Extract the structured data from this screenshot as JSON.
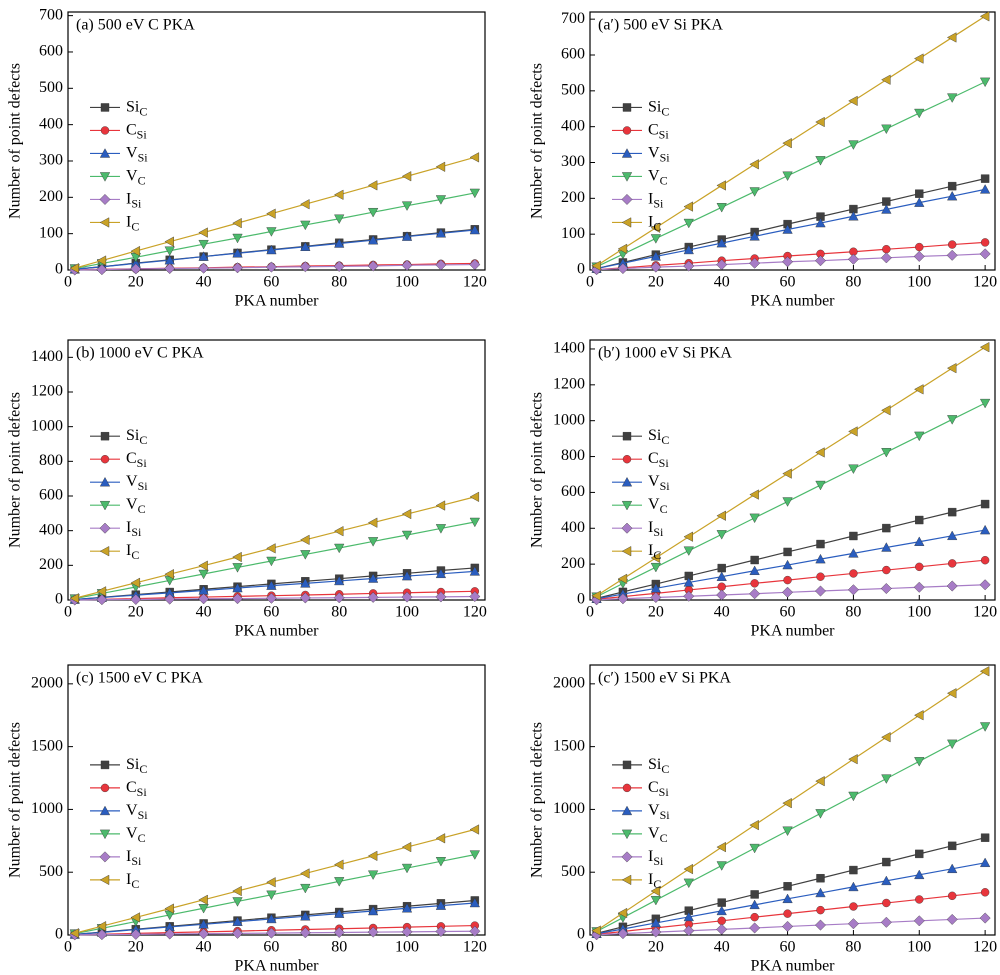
{
  "chart_data": [
    {
      "type": "line",
      "title": "(a) 500 eV C PKA",
      "xlabel": "PKA number",
      "ylabel": "Number of point defects",
      "x": [
        2,
        10,
        20,
        30,
        40,
        50,
        60,
        70,
        80,
        90,
        100,
        110,
        120
      ],
      "xlim": [
        0,
        123
      ],
      "xticks": [
        0,
        20,
        40,
        60,
        80,
        100,
        120
      ],
      "ylim": [
        0,
        710
      ],
      "yticks": [
        0,
        100,
        200,
        300,
        400,
        500,
        600,
        700
      ],
      "legend": "center left",
      "series": [
        {
          "name": "Si",
          "subscript": "C",
          "color": "#404040",
          "marker": "square",
          "values": [
            2,
            9,
            19,
            28,
            37,
            47,
            56,
            65,
            75,
            84,
            93,
            103,
            112
          ]
        },
        {
          "name": "C",
          "subscript": "Si",
          "color": "#e8353c",
          "marker": "circle",
          "values": [
            0,
            2,
            3,
            5,
            6,
            8,
            9,
            11,
            12,
            14,
            15,
            17,
            18
          ]
        },
        {
          "name": "V",
          "subscript": "Si",
          "color": "#2a5dbf",
          "marker": "triangle-up",
          "values": [
            2,
            9,
            18,
            27,
            37,
            46,
            55,
            64,
            73,
            82,
            92,
            101,
            110
          ]
        },
        {
          "name": "V",
          "subscript": "C",
          "color": "#4cba6c",
          "marker": "triangle-down",
          "values": [
            4,
            18,
            35,
            53,
            71,
            88,
            106,
            124,
            141,
            159,
            177,
            194,
            212
          ]
        },
        {
          "name": "I",
          "subscript": "Si",
          "color": "#a77cc6",
          "marker": "diamond",
          "values": [
            0,
            1,
            3,
            4,
            5,
            6,
            8,
            9,
            10,
            11,
            13,
            14,
            15
          ]
        },
        {
          "name": "I",
          "subscript": "C",
          "color": "#c9a227",
          "marker": "triangle-left",
          "values": [
            5,
            26,
            52,
            78,
            103,
            129,
            155,
            181,
            207,
            233,
            258,
            284,
            310
          ]
        }
      ]
    },
    {
      "type": "line",
      "title": "(a′) 500 eV Si PKA",
      "xlabel": "PKA number",
      "ylabel": "Number of point defects",
      "x": [
        2,
        10,
        20,
        30,
        40,
        50,
        60,
        70,
        80,
        90,
        100,
        110,
        120
      ],
      "xlim": [
        0,
        123
      ],
      "xticks": [
        0,
        20,
        40,
        60,
        80,
        100,
        120
      ],
      "ylim": [
        0,
        720
      ],
      "yticks": [
        0,
        100,
        200,
        300,
        400,
        500,
        600,
        700
      ],
      "legend": "center left",
      "series": [
        {
          "name": "Si",
          "subscript": "C",
          "color": "#404040",
          "marker": "square",
          "values": [
            4,
            21,
            43,
            64,
            85,
            106,
            128,
            149,
            170,
            191,
            213,
            234,
            255
          ]
        },
        {
          "name": "C",
          "subscript": "Si",
          "color": "#e8353c",
          "marker": "circle",
          "values": [
            1,
            6,
            13,
            19,
            26,
            32,
            39,
            45,
            51,
            58,
            64,
            71,
            77
          ]
        },
        {
          "name": "V",
          "subscript": "Si",
          "color": "#2a5dbf",
          "marker": "triangle-up",
          "values": [
            4,
            19,
            38,
            56,
            75,
            94,
            113,
            131,
            150,
            169,
            188,
            206,
            225
          ]
        },
        {
          "name": "V",
          "subscript": "C",
          "color": "#4cba6c",
          "marker": "triangle-down",
          "values": [
            9,
            44,
            88,
            131,
            175,
            219,
            263,
            306,
            350,
            394,
            438,
            481,
            525
          ]
        },
        {
          "name": "I",
          "subscript": "Si",
          "color": "#a77cc6",
          "marker": "diamond",
          "values": [
            1,
            4,
            8,
            11,
            15,
            19,
            23,
            26,
            30,
            34,
            38,
            41,
            45
          ]
        },
        {
          "name": "I",
          "subscript": "C",
          "color": "#c9a227",
          "marker": "triangle-left",
          "values": [
            12,
            59,
            118,
            177,
            236,
            295,
            354,
            413,
            472,
            531,
            590,
            649,
            708
          ]
        }
      ]
    },
    {
      "type": "line",
      "title": "(b) 1000 eV C PKA",
      "xlabel": "PKA number",
      "ylabel": "Number of point defects",
      "x": [
        2,
        10,
        20,
        30,
        40,
        50,
        60,
        70,
        80,
        90,
        100,
        110,
        120
      ],
      "xlim": [
        0,
        123
      ],
      "xticks": [
        0,
        20,
        40,
        60,
        80,
        100,
        120
      ],
      "ylim": [
        0,
        1500
      ],
      "yticks": [
        0,
        200,
        400,
        600,
        800,
        1000,
        1200,
        1400
      ],
      "legend": "center left",
      "series": [
        {
          "name": "Si",
          "subscript": "C",
          "color": "#404040",
          "marker": "square",
          "values": [
            3,
            15,
            31,
            46,
            62,
            77,
            93,
            108,
            123,
            139,
            154,
            170,
            185
          ]
        },
        {
          "name": "C",
          "subscript": "Si",
          "color": "#e8353c",
          "marker": "circle",
          "values": [
            1,
            4,
            8,
            13,
            17,
            21,
            25,
            29,
            33,
            38,
            42,
            46,
            50
          ]
        },
        {
          "name": "V",
          "subscript": "Si",
          "color": "#2a5dbf",
          "marker": "triangle-up",
          "values": [
            3,
            14,
            28,
            41,
            55,
            69,
            83,
            96,
            110,
            124,
            138,
            151,
            165
          ]
        },
        {
          "name": "V",
          "subscript": "C",
          "color": "#4cba6c",
          "marker": "triangle-down",
          "values": [
            8,
            38,
            75,
            113,
            150,
            188,
            225,
            263,
            300,
            338,
            375,
            413,
            450
          ]
        },
        {
          "name": "I",
          "subscript": "Si",
          "color": "#a77cc6",
          "marker": "diamond",
          "values": [
            0,
            2,
            3,
            5,
            7,
            8,
            10,
            12,
            13,
            15,
            17,
            18,
            20
          ]
        },
        {
          "name": "I",
          "subscript": "C",
          "color": "#c9a227",
          "marker": "triangle-left",
          "values": [
            10,
            50,
            99,
            149,
            198,
            248,
            298,
            347,
            397,
            446,
            496,
            545,
            595
          ]
        }
      ]
    },
    {
      "type": "line",
      "title": "(b′) 1000 eV Si PKA",
      "xlabel": "PKA number",
      "ylabel": "Number of point defects",
      "x": [
        2,
        10,
        20,
        30,
        40,
        50,
        60,
        70,
        80,
        90,
        100,
        110,
        120
      ],
      "xlim": [
        0,
        123
      ],
      "xticks": [
        0,
        20,
        40,
        60,
        80,
        100,
        120
      ],
      "ylim": [
        0,
        1450
      ],
      "yticks": [
        0,
        200,
        400,
        600,
        800,
        1000,
        1200,
        1400
      ],
      "legend": "center left",
      "series": [
        {
          "name": "Si",
          "subscript": "C",
          "color": "#404040",
          "marker": "square",
          "values": [
            9,
            45,
            89,
            134,
            178,
            223,
            268,
            312,
            357,
            401,
            446,
            490,
            535
          ]
        },
        {
          "name": "C",
          "subscript": "Si",
          "color": "#e8353c",
          "marker": "circle",
          "values": [
            4,
            19,
            37,
            56,
            74,
            93,
            111,
            130,
            148,
            167,
            185,
            204,
            222
          ]
        },
        {
          "name": "V",
          "subscript": "Si",
          "color": "#2a5dbf",
          "marker": "triangle-up",
          "values": [
            7,
            33,
            65,
            98,
            130,
            163,
            195,
            228,
            260,
            293,
            325,
            358,
            390
          ]
        },
        {
          "name": "V",
          "subscript": "C",
          "color": "#4cba6c",
          "marker": "triangle-down",
          "values": [
            18,
            92,
            183,
            275,
            366,
            458,
            549,
            641,
            732,
            824,
            915,
            1007,
            1098
          ]
        },
        {
          "name": "I",
          "subscript": "Si",
          "color": "#a77cc6",
          "marker": "diamond",
          "values": [
            1,
            7,
            14,
            21,
            28,
            35,
            43,
            50,
            57,
            64,
            71,
            78,
            85
          ]
        },
        {
          "name": "I",
          "subscript": "C",
          "color": "#c9a227",
          "marker": "triangle-left",
          "values": [
            24,
            118,
            235,
            353,
            470,
            588,
            705,
            823,
            940,
            1058,
            1175,
            1293,
            1410
          ]
        }
      ]
    },
    {
      "type": "line",
      "title": "(c) 1500 eV C PKA",
      "xlabel": "PKA number",
      "ylabel": "Number of point defects",
      "x": [
        2,
        10,
        20,
        30,
        40,
        50,
        60,
        70,
        80,
        90,
        100,
        110,
        120
      ],
      "xlim": [
        0,
        123
      ],
      "xticks": [
        0,
        20,
        40,
        60,
        80,
        100,
        120
      ],
      "ylim": [
        0,
        2150
      ],
      "yticks": [
        0,
        500,
        1000,
        1500,
        2000
      ],
      "legend": "center left",
      "series": [
        {
          "name": "Si",
          "subscript": "C",
          "color": "#404040",
          "marker": "square",
          "values": [
            5,
            23,
            46,
            69,
            92,
            115,
            138,
            160,
            183,
            206,
            229,
            252,
            275
          ]
        },
        {
          "name": "C",
          "subscript": "Si",
          "color": "#e8353c",
          "marker": "circle",
          "values": [
            1,
            6,
            13,
            19,
            25,
            31,
            38,
            44,
            50,
            56,
            63,
            69,
            75
          ]
        },
        {
          "name": "V",
          "subscript": "Si",
          "color": "#2a5dbf",
          "marker": "triangle-up",
          "values": [
            4,
            21,
            43,
            64,
            85,
            106,
            128,
            149,
            170,
            191,
            213,
            234,
            255
          ]
        },
        {
          "name": "V",
          "subscript": "C",
          "color": "#4cba6c",
          "marker": "triangle-down",
          "values": [
            11,
            53,
            107,
            160,
            213,
            267,
            320,
            373,
            427,
            480,
            533,
            587,
            640
          ]
        },
        {
          "name": "I",
          "subscript": "Si",
          "color": "#a77cc6",
          "marker": "diamond",
          "values": [
            1,
            3,
            5,
            8,
            10,
            13,
            15,
            18,
            20,
            23,
            25,
            28,
            30
          ]
        },
        {
          "name": "I",
          "subscript": "C",
          "color": "#c9a227",
          "marker": "triangle-left",
          "values": [
            14,
            70,
            140,
            210,
            280,
            350,
            420,
            490,
            560,
            630,
            700,
            770,
            840
          ]
        }
      ]
    },
    {
      "type": "line",
      "title": "(c′) 1500 eV Si PKA",
      "xlabel": "PKA number",
      "ylabel": "Number of point defects",
      "x": [
        2,
        10,
        20,
        30,
        40,
        50,
        60,
        70,
        80,
        90,
        100,
        110,
        120
      ],
      "xlim": [
        0,
        123
      ],
      "xticks": [
        0,
        20,
        40,
        60,
        80,
        100,
        120
      ],
      "ylim": [
        0,
        2150
      ],
      "yticks": [
        0,
        500,
        1000,
        1500,
        2000
      ],
      "legend": "center left",
      "series": [
        {
          "name": "Si",
          "subscript": "C",
          "color": "#404040",
          "marker": "square",
          "values": [
            13,
            65,
            129,
            194,
            258,
            323,
            388,
            452,
            517,
            581,
            646,
            710,
            775
          ]
        },
        {
          "name": "C",
          "subscript": "Si",
          "color": "#e8353c",
          "marker": "circle",
          "values": [
            6,
            28,
            57,
            85,
            113,
            142,
            170,
            198,
            227,
            255,
            283,
            312,
            340
          ]
        },
        {
          "name": "V",
          "subscript": "Si",
          "color": "#2a5dbf",
          "marker": "triangle-up",
          "values": [
            10,
            48,
            96,
            144,
            192,
            240,
            288,
            335,
            383,
            431,
            479,
            527,
            575
          ]
        },
        {
          "name": "V",
          "subscript": "C",
          "color": "#4cba6c",
          "marker": "triangle-down",
          "values": [
            28,
            138,
            277,
            415,
            553,
            692,
            830,
            968,
            1107,
            1245,
            1383,
            1522,
            1660
          ]
        },
        {
          "name": "I",
          "subscript": "Si",
          "color": "#a77cc6",
          "marker": "diamond",
          "values": [
            2,
            11,
            23,
            34,
            45,
            56,
            68,
            79,
            90,
            101,
            113,
            124,
            135
          ]
        },
        {
          "name": "I",
          "subscript": "C",
          "color": "#c9a227",
          "marker": "triangle-left",
          "values": [
            35,
            175,
            350,
            525,
            700,
            875,
            1050,
            1225,
            1400,
            1575,
            1750,
            1925,
            2100
          ]
        }
      ]
    }
  ]
}
